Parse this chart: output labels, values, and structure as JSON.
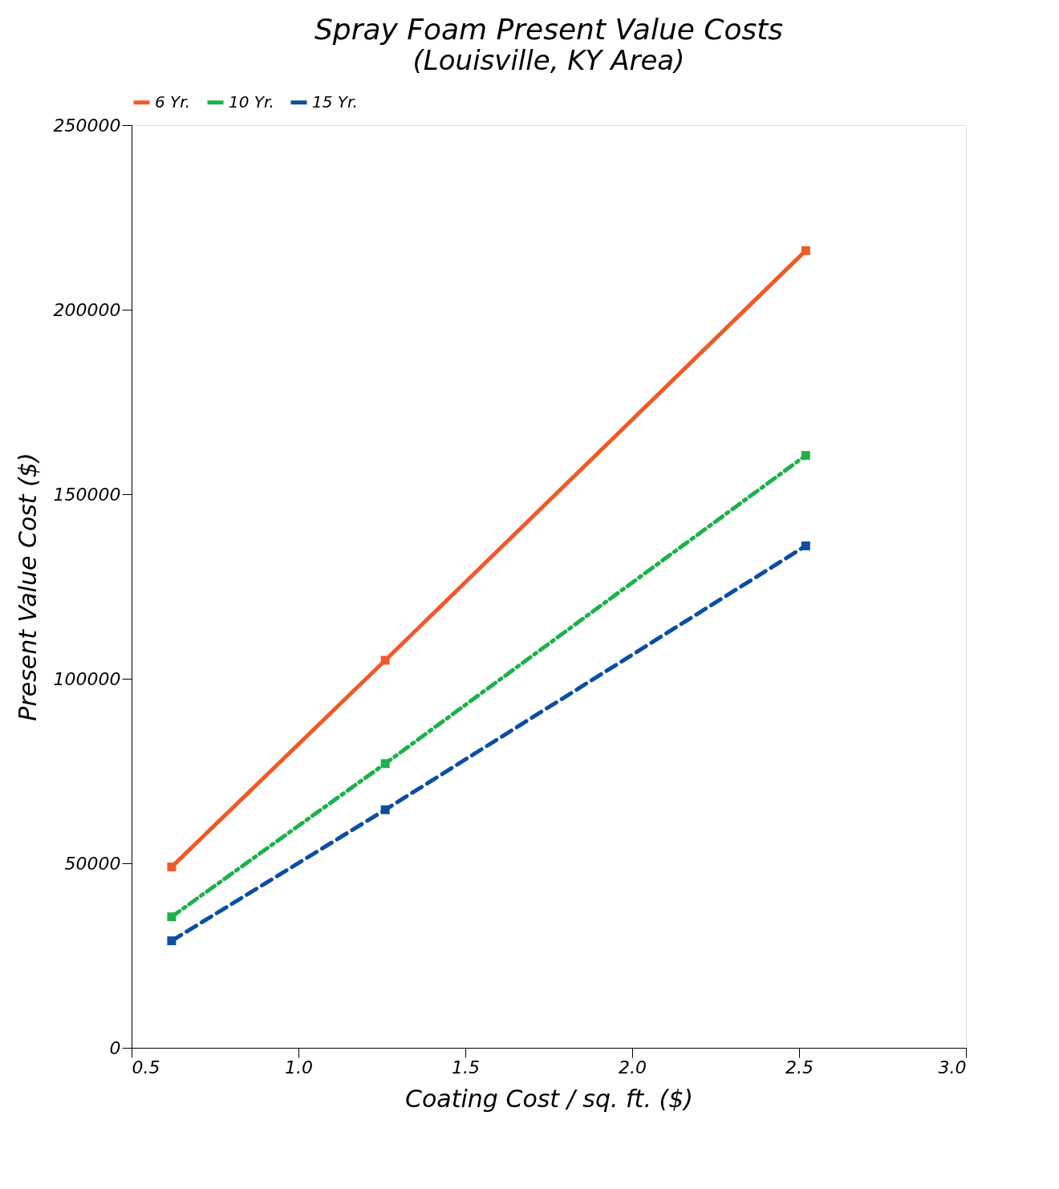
{
  "chart_data": {
    "type": "line",
    "title": "Spray Foam Present Value Costs",
    "subtitle": "(Louisville, KY Area)",
    "xlabel": "Coating Cost / sq. ft. ($)",
    "ylabel": "Present Value Cost ($)",
    "x": [
      0.62,
      1.26,
      2.52
    ],
    "series": [
      {
        "name": "6 Yr.",
        "color": "#f05a28",
        "line_style": "solid",
        "values": [
          49000,
          105000,
          216000
        ]
      },
      {
        "name": "10 Yr.",
        "color": "#1db14b",
        "line_style": "dashdot",
        "values": [
          35500,
          77000,
          160500
        ]
      },
      {
        "name": "15 Yr.",
        "color": "#0b4ea2",
        "line_style": "dashed",
        "values": [
          29000,
          64500,
          136000
        ]
      }
    ],
    "xlim": [
      0.5,
      3.0
    ],
    "xticks": [
      {
        "value": 0.5,
        "label": "0.5"
      },
      {
        "value": 1.0,
        "label": "1.0"
      },
      {
        "value": 1.5,
        "label": "1.5"
      },
      {
        "value": 2.0,
        "label": "2.0"
      },
      {
        "value": 2.5,
        "label": "2.5"
      },
      {
        "value": 3.0,
        "label": "3.0"
      }
    ],
    "ylim": [
      0,
      250000
    ],
    "yticks": [
      0,
      50000,
      100000,
      150000,
      200000,
      250000
    ],
    "grid": false,
    "legend": "top",
    "marker": "square"
  }
}
